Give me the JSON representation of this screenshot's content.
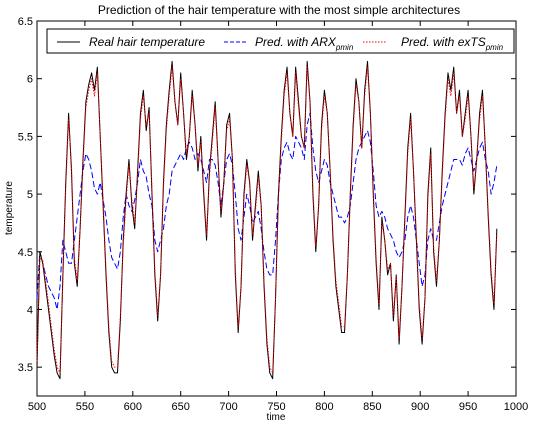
{
  "chart_data": {
    "type": "line",
    "title": "Prediction of the hair temperature with the most simple architectures",
    "xlabel": "time",
    "ylabel": "temperature",
    "xlim": [
      500,
      1000
    ],
    "ylim": [
      3.25,
      6.5
    ],
    "xticks": [
      "500",
      "550",
      "600",
      "650",
      "700",
      "750",
      "800",
      "850",
      "900",
      "950",
      "1000"
    ],
    "yticks": [
      "3.5",
      "4",
      "4.5",
      "5",
      "5.5",
      "6",
      "6.5"
    ],
    "legend_position": "top",
    "series": [
      {
        "name": "Real hair temperature",
        "color": "#000000",
        "dash": "solid",
        "x": [
          500,
          503,
          506,
          509,
          512,
          515,
          518,
          521,
          524,
          527,
          530,
          533,
          536,
          539,
          542,
          545,
          548,
          551,
          554,
          557,
          560,
          563,
          566,
          569,
          572,
          575,
          578,
          581,
          584,
          587,
          590,
          593,
          596,
          599,
          602,
          605,
          608,
          611,
          614,
          617,
          620,
          623,
          626,
          629,
          632,
          635,
          638,
          641,
          644,
          647,
          650,
          653,
          656,
          659,
          662,
          665,
          668,
          671,
          674,
          677,
          680,
          683,
          686,
          689,
          692,
          695,
          698,
          701,
          704,
          707,
          710,
          713,
          716,
          719,
          722,
          725,
          728,
          731,
          734,
          737,
          740,
          743,
          746,
          749,
          752,
          755,
          758,
          761,
          764,
          767,
          770,
          773,
          776,
          779,
          782,
          785,
          788,
          791,
          794,
          797,
          800,
          803,
          806,
          809,
          812,
          815,
          818,
          821,
          824,
          827,
          830,
          833,
          836,
          839,
          842,
          845,
          848,
          851,
          854,
          857,
          860,
          863,
          866,
          869,
          872,
          875,
          878,
          881,
          884,
          887,
          890,
          893,
          896,
          899,
          902,
          905,
          908,
          911,
          914,
          917,
          920,
          923,
          926,
          929,
          932,
          935,
          938,
          941,
          944,
          947,
          950,
          953,
          956,
          959,
          962,
          965,
          968,
          971,
          974,
          977,
          980
        ],
        "y": [
          3.5,
          4.5,
          4.4,
          4.2,
          4.0,
          3.8,
          3.6,
          3.45,
          3.4,
          4.3,
          5.1,
          5.7,
          5.2,
          4.4,
          4.2,
          4.7,
          5.3,
          5.8,
          5.95,
          6.05,
          5.9,
          6.1,
          5.5,
          4.9,
          4.3,
          3.8,
          3.5,
          3.45,
          3.45,
          3.9,
          4.6,
          5.0,
          5.3,
          4.9,
          4.7,
          5.2,
          5.7,
          5.9,
          5.55,
          5.75,
          5.0,
          4.3,
          3.9,
          4.3,
          5.1,
          5.6,
          5.9,
          6.15,
          5.8,
          5.6,
          6.05,
          5.7,
          5.3,
          5.5,
          5.9,
          5.6,
          5.2,
          5.5,
          5.0,
          4.6,
          5.2,
          5.5,
          5.8,
          5.3,
          4.8,
          5.1,
          5.6,
          5.7,
          5.3,
          4.3,
          3.8,
          4.2,
          5.0,
          5.3,
          5.1,
          4.6,
          4.9,
          5.2,
          4.9,
          4.2,
          3.7,
          3.45,
          3.4,
          4.1,
          5.0,
          5.5,
          5.9,
          6.1,
          5.7,
          5.5,
          6.1,
          5.8,
          5.5,
          5.4,
          6.15,
          5.8,
          5.0,
          4.5,
          4.9,
          5.6,
          5.9,
          5.7,
          5.2,
          4.6,
          4.2,
          4.0,
          3.8,
          3.8,
          4.3,
          5.0,
          5.6,
          6.0,
          5.8,
          5.4,
          5.9,
          6.15,
          5.7,
          5.0,
          4.4,
          4.0,
          4.8,
          4.6,
          4.3,
          4.4,
          3.9,
          4.3,
          3.7,
          4.2,
          4.8,
          5.4,
          5.7,
          5.2,
          4.6,
          4.0,
          3.7,
          4.1,
          5.0,
          5.4,
          4.5,
          4.2,
          4.6,
          5.2,
          5.7,
          6.05,
          5.9,
          6.1,
          5.7,
          5.9,
          5.5,
          5.7,
          5.9,
          5.5,
          5.0,
          5.3,
          5.7,
          5.9,
          5.4,
          4.8,
          4.3,
          4.0,
          4.7
        ],
        "note_gaps": false
      },
      {
        "name": "Pred. with ARX",
        "name_subscript": "pmin",
        "color": "#0000ff",
        "dash": "6,3",
        "x": [
          500,
          503,
          506,
          509,
          512,
          515,
          518,
          521,
          524,
          527,
          530,
          533,
          536,
          539,
          542,
          545,
          548,
          551,
          554,
          557,
          560,
          563,
          566,
          569,
          572,
          575,
          578,
          581,
          584,
          587,
          590,
          593,
          596,
          599,
          602,
          605,
          608,
          611,
          614,
          617,
          620,
          623,
          626,
          629,
          632,
          635,
          638,
          641,
          644,
          647,
          650,
          653,
          656,
          659,
          662,
          665,
          668,
          671,
          674,
          677,
          680,
          683,
          686,
          689,
          692,
          695,
          698,
          701,
          704,
          707,
          710,
          713,
          716,
          719,
          722,
          725,
          728,
          731,
          734,
          737,
          740,
          743,
          746,
          749,
          752,
          755,
          758,
          761,
          764,
          767,
          770,
          773,
          776,
          779,
          782,
          785,
          788,
          791,
          794,
          797,
          800,
          803,
          806,
          809,
          812,
          815,
          818,
          821,
          824,
          827,
          830,
          833,
          836,
          839,
          842,
          845,
          848,
          851,
          854,
          857,
          860,
          863,
          866,
          869,
          872,
          875,
          878,
          881,
          884,
          887,
          890,
          893,
          896,
          899,
          902,
          905,
          908,
          911,
          914,
          917,
          920,
          923,
          926,
          929,
          932,
          935,
          938,
          941,
          944,
          947,
          950,
          953,
          956,
          959,
          962,
          965,
          968,
          971,
          974,
          977,
          980
        ],
        "y": [
          4.1,
          4.5,
          4.4,
          4.3,
          4.2,
          4.15,
          4.1,
          4.0,
          4.2,
          4.6,
          4.5,
          4.4,
          4.4,
          4.6,
          4.8,
          5.0,
          5.2,
          5.35,
          5.3,
          5.2,
          5.05,
          5.0,
          5.1,
          4.95,
          4.8,
          4.6,
          4.45,
          4.4,
          4.35,
          4.5,
          4.8,
          5.0,
          4.9,
          4.85,
          4.95,
          5.1,
          5.3,
          5.2,
          5.15,
          5.0,
          4.9,
          4.6,
          4.5,
          4.6,
          4.7,
          4.9,
          5.0,
          5.2,
          5.25,
          5.3,
          5.35,
          5.3,
          5.4,
          5.45,
          5.4,
          5.3,
          5.35,
          5.3,
          5.2,
          5.1,
          5.3,
          5.3,
          5.25,
          5.1,
          4.9,
          5.1,
          5.3,
          5.35,
          5.25,
          5.0,
          4.7,
          4.6,
          4.8,
          5.0,
          4.9,
          4.75,
          4.8,
          4.85,
          4.7,
          4.5,
          4.35,
          4.3,
          4.3,
          4.6,
          5.0,
          5.3,
          5.4,
          5.45,
          5.35,
          5.3,
          5.5,
          5.45,
          5.4,
          5.3,
          5.6,
          5.7,
          5.4,
          5.2,
          5.1,
          5.2,
          5.3,
          5.25,
          5.1,
          5.0,
          4.9,
          4.8,
          4.8,
          4.75,
          4.8,
          4.9,
          5.1,
          5.3,
          5.4,
          5.45,
          5.5,
          5.55,
          5.45,
          5.2,
          4.9,
          4.8,
          4.85,
          4.8,
          4.7,
          4.65,
          4.6,
          4.5,
          4.45,
          4.5,
          4.6,
          4.8,
          4.9,
          4.8,
          4.6,
          4.4,
          4.2,
          4.3,
          4.6,
          4.7,
          4.6,
          4.6,
          4.75,
          4.9,
          5.0,
          5.1,
          5.2,
          5.3,
          5.3,
          5.3,
          5.25,
          5.35,
          5.4,
          5.3,
          5.2,
          5.3,
          5.4,
          5.45,
          5.3,
          5.2,
          5.0,
          5.1,
          5.25
        ]
      },
      {
        "name": "Pred. with exTS",
        "name_subscript": "pmin",
        "color": "#ff0000",
        "dash": "1.5,1.5",
        "x": [
          500,
          503,
          506,
          509,
          512,
          515,
          518,
          521,
          524,
          527,
          530,
          533,
          536,
          539,
          542,
          545,
          548,
          551,
          554,
          557,
          560,
          563,
          566,
          569,
          572,
          575,
          578,
          581,
          584,
          587,
          590,
          593,
          596,
          599,
          602,
          605,
          608,
          611,
          614,
          617,
          620,
          623,
          626,
          629,
          632,
          635,
          638,
          641,
          644,
          647,
          650,
          653,
          656,
          659,
          662,
          665,
          668,
          671,
          674,
          677,
          680,
          683,
          686,
          689,
          692,
          695,
          698,
          701,
          704,
          707,
          710,
          713,
          716,
          719,
          722,
          725,
          728,
          731,
          734,
          737,
          740,
          743,
          746,
          749,
          752,
          755,
          758,
          761,
          764,
          767,
          770,
          773,
          776,
          779,
          782,
          785,
          788,
          791,
          794,
          797,
          800,
          803,
          806,
          809,
          812,
          815,
          818,
          821,
          824,
          827,
          830,
          833,
          836,
          839,
          842,
          845,
          848,
          851,
          854,
          857,
          860,
          863,
          866,
          869,
          872,
          875,
          878,
          881,
          884,
          887,
          890,
          893,
          896,
          899,
          902,
          905,
          908,
          911,
          914,
          917,
          920,
          923,
          926,
          929,
          932,
          935,
          938,
          941,
          944,
          947,
          950,
          953,
          956,
          959,
          962,
          965,
          968,
          971,
          974,
          977,
          980
        ],
        "y": [
          3.55,
          4.45,
          4.42,
          4.25,
          4.05,
          3.85,
          3.65,
          3.5,
          3.45,
          4.25,
          5.05,
          5.65,
          5.25,
          4.45,
          4.25,
          4.7,
          5.25,
          5.75,
          5.9,
          6.0,
          5.85,
          6.05,
          5.5,
          4.95,
          4.35,
          3.85,
          3.55,
          3.5,
          3.5,
          3.95,
          4.55,
          4.95,
          5.25,
          4.95,
          4.75,
          5.15,
          5.65,
          5.85,
          5.6,
          5.7,
          5.05,
          4.35,
          3.95,
          4.3,
          5.05,
          5.55,
          5.85,
          6.1,
          5.8,
          5.6,
          6.0,
          5.7,
          5.35,
          5.5,
          5.85,
          5.6,
          5.25,
          5.45,
          5.05,
          4.65,
          5.15,
          5.45,
          5.75,
          5.3,
          4.85,
          5.1,
          5.55,
          5.65,
          5.3,
          4.35,
          3.85,
          4.2,
          4.95,
          5.25,
          5.1,
          4.65,
          4.85,
          5.15,
          4.9,
          4.25,
          3.75,
          3.5,
          3.45,
          4.1,
          4.95,
          5.45,
          5.85,
          6.05,
          5.7,
          5.5,
          6.05,
          5.75,
          5.5,
          5.4,
          6.1,
          5.8,
          5.05,
          4.55,
          4.9,
          5.55,
          5.85,
          5.7,
          5.2,
          4.65,
          4.25,
          4.05,
          3.85,
          3.85,
          4.3,
          4.95,
          5.55,
          5.95,
          5.8,
          5.4,
          5.85,
          6.1,
          5.7,
          5.05,
          4.45,
          4.05,
          4.75,
          4.6,
          4.35,
          4.4,
          3.95,
          4.3,
          3.75,
          4.2,
          4.75,
          5.35,
          5.65,
          5.2,
          4.65,
          4.05,
          3.75,
          4.1,
          4.95,
          5.35,
          4.55,
          4.25,
          4.6,
          5.15,
          5.65,
          6.0,
          5.85,
          6.05,
          5.7,
          5.85,
          5.5,
          5.65,
          5.85,
          5.5,
          5.05,
          5.3,
          5.65,
          5.85,
          5.4,
          4.85,
          4.35,
          4.05,
          4.65
        ]
      }
    ]
  }
}
